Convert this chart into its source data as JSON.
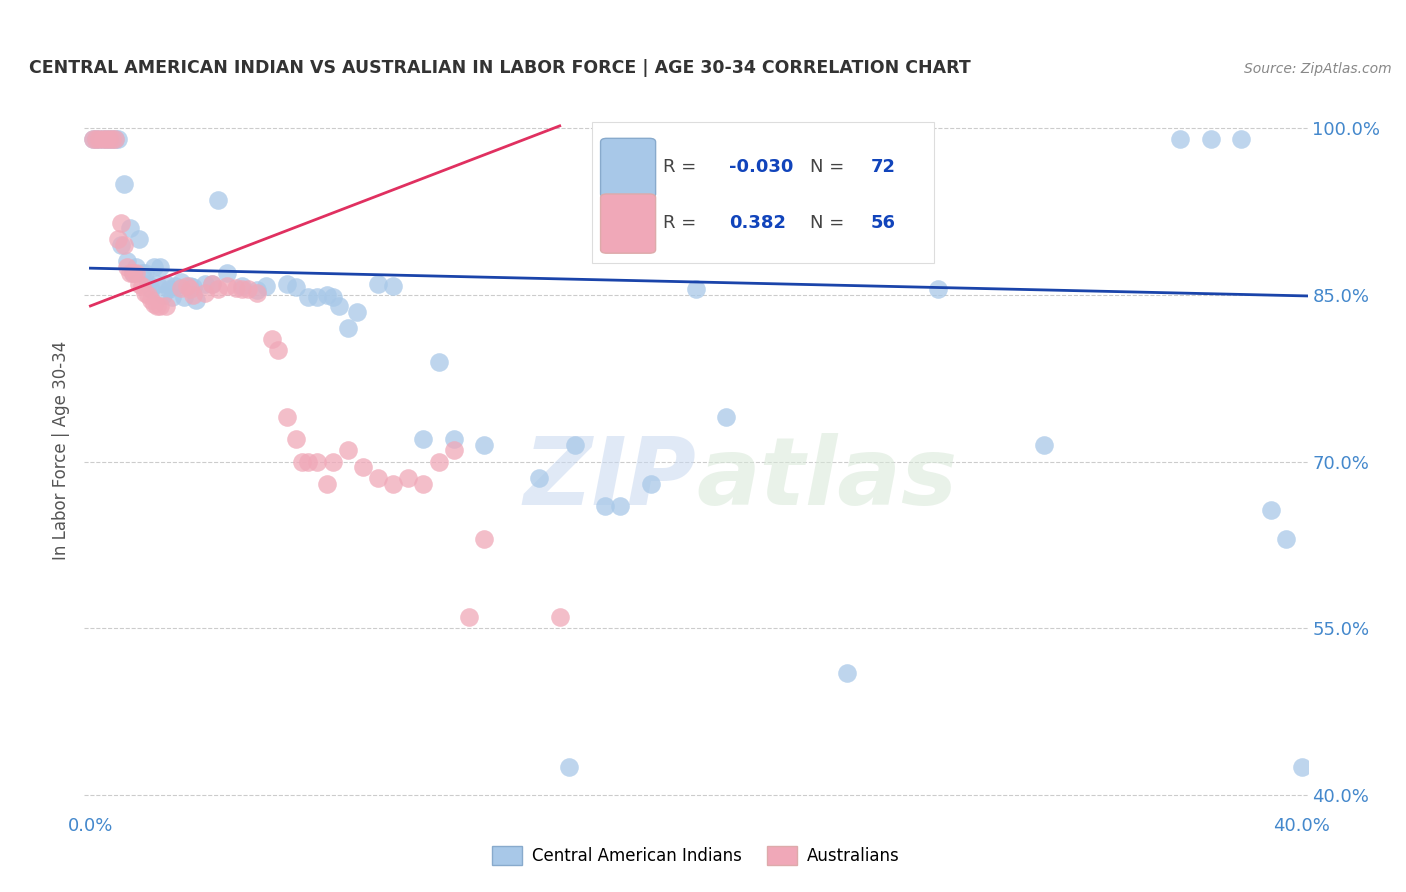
{
  "title": "CENTRAL AMERICAN INDIAN VS AUSTRALIAN IN LABOR FORCE | AGE 30-34 CORRELATION CHART",
  "source": "Source: ZipAtlas.com",
  "ylabel": "In Labor Force | Age 30-34",
  "xlim": [
    -0.002,
    0.402
  ],
  "ylim": [
    0.385,
    1.035
  ],
  "xticks": [
    0.0,
    0.05,
    0.1,
    0.15,
    0.2,
    0.25,
    0.3,
    0.35,
    0.4
  ],
  "xticklabels": [
    "0.0%",
    "",
    "",
    "",
    "",
    "",
    "",
    "",
    "40.0%"
  ],
  "yticks": [
    0.4,
    0.55,
    0.7,
    0.85,
    1.0
  ],
  "yticklabels": [
    "40.0%",
    "55.0%",
    "70.0%",
    "85.0%",
    "100.0%"
  ],
  "legend_R_blue": "-0.030",
  "legend_N_blue": "72",
  "legend_R_pink": "0.382",
  "legend_N_pink": "56",
  "watermark_zip": "ZIP",
  "watermark_atlas": "atlas",
  "blue_color": "#A8C8E8",
  "pink_color": "#F0A8B8",
  "blue_line_color": "#1A44AA",
  "pink_line_color": "#E03060",
  "blue_scatter": [
    [
      0.001,
      0.99
    ],
    [
      0.002,
      0.99
    ],
    [
      0.003,
      0.99
    ],
    [
      0.004,
      0.99
    ],
    [
      0.005,
      0.99
    ],
    [
      0.006,
      0.99
    ],
    [
      0.007,
      0.99
    ],
    [
      0.008,
      0.99
    ],
    [
      0.009,
      0.99
    ],
    [
      0.01,
      0.895
    ],
    [
      0.011,
      0.95
    ],
    [
      0.012,
      0.88
    ],
    [
      0.013,
      0.91
    ],
    [
      0.014,
      0.87
    ],
    [
      0.015,
      0.875
    ],
    [
      0.016,
      0.9
    ],
    [
      0.017,
      0.87
    ],
    [
      0.018,
      0.87
    ],
    [
      0.019,
      0.86
    ],
    [
      0.02,
      0.855
    ],
    [
      0.021,
      0.875
    ],
    [
      0.022,
      0.86
    ],
    [
      0.023,
      0.875
    ],
    [
      0.024,
      0.85
    ],
    [
      0.025,
      0.86
    ],
    [
      0.026,
      0.855
    ],
    [
      0.027,
      0.848
    ],
    [
      0.028,
      0.858
    ],
    [
      0.03,
      0.862
    ],
    [
      0.031,
      0.848
    ],
    [
      0.033,
      0.858
    ],
    [
      0.034,
      0.857
    ],
    [
      0.035,
      0.845
    ],
    [
      0.038,
      0.86
    ],
    [
      0.04,
      0.86
    ],
    [
      0.042,
      0.935
    ],
    [
      0.045,
      0.87
    ],
    [
      0.05,
      0.858
    ],
    [
      0.055,
      0.854
    ],
    [
      0.058,
      0.858
    ],
    [
      0.065,
      0.86
    ],
    [
      0.068,
      0.857
    ],
    [
      0.072,
      0.848
    ],
    [
      0.075,
      0.848
    ],
    [
      0.078,
      0.85
    ],
    [
      0.08,
      0.848
    ],
    [
      0.082,
      0.84
    ],
    [
      0.085,
      0.82
    ],
    [
      0.088,
      0.835
    ],
    [
      0.095,
      0.86
    ],
    [
      0.1,
      0.858
    ],
    [
      0.11,
      0.72
    ],
    [
      0.115,
      0.79
    ],
    [
      0.12,
      0.72
    ],
    [
      0.13,
      0.715
    ],
    [
      0.148,
      0.685
    ],
    [
      0.16,
      0.715
    ],
    [
      0.17,
      0.66
    ],
    [
      0.175,
      0.66
    ],
    [
      0.185,
      0.68
    ],
    [
      0.2,
      0.855
    ],
    [
      0.21,
      0.74
    ],
    [
      0.25,
      0.51
    ],
    [
      0.28,
      0.855
    ],
    [
      0.315,
      0.715
    ],
    [
      0.36,
      0.99
    ],
    [
      0.37,
      0.99
    ],
    [
      0.38,
      0.99
    ],
    [
      0.39,
      0.656
    ],
    [
      0.395,
      0.63
    ],
    [
      0.4,
      0.425
    ],
    [
      0.158,
      0.425
    ]
  ],
  "pink_scatter": [
    [
      0.001,
      0.99
    ],
    [
      0.002,
      0.99
    ],
    [
      0.003,
      0.99
    ],
    [
      0.004,
      0.99
    ],
    [
      0.005,
      0.99
    ],
    [
      0.006,
      0.99
    ],
    [
      0.007,
      0.99
    ],
    [
      0.008,
      0.99
    ],
    [
      0.009,
      0.9
    ],
    [
      0.01,
      0.915
    ],
    [
      0.011,
      0.895
    ],
    [
      0.012,
      0.875
    ],
    [
      0.013,
      0.87
    ],
    [
      0.014,
      0.87
    ],
    [
      0.015,
      0.87
    ],
    [
      0.016,
      0.86
    ],
    [
      0.017,
      0.858
    ],
    [
      0.018,
      0.852
    ],
    [
      0.019,
      0.85
    ],
    [
      0.02,
      0.845
    ],
    [
      0.021,
      0.842
    ],
    [
      0.022,
      0.84
    ],
    [
      0.023,
      0.84
    ],
    [
      0.025,
      0.84
    ],
    [
      0.03,
      0.856
    ],
    [
      0.032,
      0.858
    ],
    [
      0.033,
      0.855
    ],
    [
      0.034,
      0.85
    ],
    [
      0.038,
      0.852
    ],
    [
      0.04,
      0.86
    ],
    [
      0.042,
      0.855
    ],
    [
      0.045,
      0.858
    ],
    [
      0.048,
      0.856
    ],
    [
      0.05,
      0.855
    ],
    [
      0.052,
      0.855
    ],
    [
      0.055,
      0.852
    ],
    [
      0.06,
      0.81
    ],
    [
      0.062,
      0.8
    ],
    [
      0.065,
      0.74
    ],
    [
      0.068,
      0.72
    ],
    [
      0.07,
      0.7
    ],
    [
      0.072,
      0.7
    ],
    [
      0.075,
      0.7
    ],
    [
      0.078,
      0.68
    ],
    [
      0.08,
      0.7
    ],
    [
      0.085,
      0.71
    ],
    [
      0.09,
      0.695
    ],
    [
      0.095,
      0.685
    ],
    [
      0.1,
      0.68
    ],
    [
      0.105,
      0.685
    ],
    [
      0.11,
      0.68
    ],
    [
      0.115,
      0.7
    ],
    [
      0.12,
      0.71
    ],
    [
      0.125,
      0.56
    ],
    [
      0.13,
      0.63
    ],
    [
      0.155,
      0.56
    ]
  ],
  "blue_trend_x": [
    0.0,
    0.402
  ],
  "blue_trend_y": [
    0.874,
    0.849
  ],
  "pink_trend_x": [
    0.0,
    0.155
  ],
  "pink_trend_y": [
    0.84,
    1.002
  ]
}
